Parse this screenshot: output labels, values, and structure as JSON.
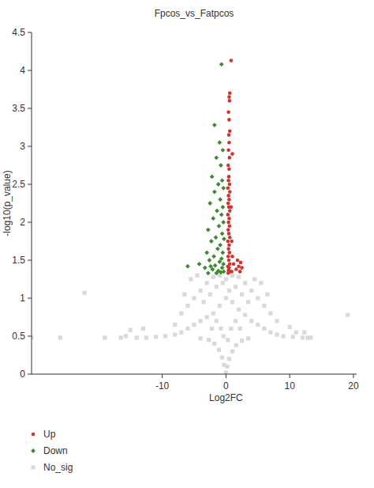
{
  "chart_data": {
    "type": "scatter",
    "title": "Fpcos_vs_Fatpcos",
    "x_label": "Log2FC",
    "y_label": "-log10(p_value)",
    "xlim": [
      -30.5,
      20.5
    ],
    "xticks": [
      -10,
      0,
      10,
      20
    ],
    "ylim": [
      0,
      4.5
    ],
    "yticks": [
      0,
      0.5,
      1,
      1.5,
      2,
      2.5,
      3,
      3.5,
      4,
      4.5
    ],
    "legend": "bottom-left",
    "series": [
      {
        "name": "Up",
        "color": "#d0342c",
        "marker": "circle",
        "x": [
          0.8,
          0.6,
          0.5,
          0.55,
          0.4,
          0.5,
          0.6,
          0.45,
          0.5,
          0.4,
          0.55,
          0.35,
          0.5,
          0.45,
          0.4,
          0.55,
          0.3,
          0.6,
          0.4,
          0.5,
          0.35,
          0.45,
          0.6,
          0.3,
          0.5,
          0.4,
          0.55,
          0.35,
          0.45,
          0.6,
          0.3,
          0.5,
          0.4,
          0.55,
          0.35,
          0.45,
          0.6,
          0.3,
          0.5,
          0.4,
          0.55,
          0.35,
          1.0,
          1.2,
          1.8,
          2.0,
          2.3,
          2.5,
          1.6,
          2.2,
          0.9,
          0.8,
          1.0,
          0.9
        ],
        "y": [
          4.13,
          3.7,
          3.65,
          3.6,
          3.45,
          3.35,
          3.2,
          3.15,
          3.05,
          2.95,
          2.85,
          2.75,
          2.7,
          2.6,
          2.55,
          2.5,
          2.45,
          2.4,
          2.35,
          2.3,
          2.25,
          2.2,
          2.15,
          2.1,
          2.05,
          2.0,
          1.95,
          1.9,
          1.85,
          1.8,
          1.75,
          1.7,
          1.65,
          1.6,
          1.55,
          1.5,
          1.45,
          1.42,
          1.4,
          1.37,
          1.35,
          1.33,
          1.55,
          1.45,
          1.5,
          1.42,
          1.47,
          1.4,
          1.38,
          1.35,
          1.75,
          2.2,
          2.9,
          1.35
        ]
      },
      {
        "name": "Down",
        "color": "#3d8b2f",
        "marker": "diamond",
        "x": [
          -0.7,
          -1.8,
          -1.0,
          -0.5,
          -1.5,
          -0.8,
          -2.2,
          -0.6,
          -1.2,
          -0.4,
          -1.8,
          -0.9,
          -2.5,
          -0.5,
          -1.4,
          -0.7,
          -2.0,
          -0.4,
          -1.1,
          -2.8,
          -0.6,
          -1.6,
          -0.3,
          -2.3,
          -0.9,
          -1.3,
          -3.0,
          -0.5,
          -1.9,
          -0.7,
          -2.6,
          -1.0,
          -0.4,
          -1.7,
          -3.3,
          -0.6,
          -2.1,
          -1.2,
          -0.8,
          -2.8,
          -4.2,
          -6.0,
          -1.5,
          -0.35,
          -2.4
        ],
        "y": [
          4.08,
          3.28,
          3.05,
          2.95,
          2.85,
          2.75,
          2.6,
          2.55,
          2.5,
          2.45,
          2.4,
          2.3,
          2.25,
          2.2,
          2.15,
          2.1,
          2.05,
          2.0,
          1.95,
          1.9,
          1.85,
          1.8,
          1.78,
          1.75,
          1.7,
          1.65,
          1.6,
          1.6,
          1.55,
          1.52,
          1.5,
          1.48,
          1.45,
          1.43,
          1.4,
          1.4,
          1.38,
          1.36,
          1.34,
          1.33,
          1.45,
          1.42,
          1.33,
          1.35,
          1.42
        ]
      },
      {
        "name": "No_sig",
        "color": "#d9d9d9",
        "marker": "square",
        "x": [
          0,
          0.2,
          -0.3,
          0.5,
          -0.6,
          1.0,
          -1.1,
          1.6,
          -1.8,
          2.5,
          -2.7,
          3.5,
          -4,
          -14,
          -12.5,
          -11,
          -9.5,
          -8,
          -7,
          -6,
          -5,
          -4,
          -3,
          -2,
          -1,
          0,
          1,
          2,
          3,
          4,
          5,
          6,
          7,
          8,
          9,
          10.5,
          12,
          12.8,
          -7,
          -6,
          -5,
          -4,
          -3,
          -2,
          -1,
          0,
          1,
          2,
          3,
          4,
          5,
          6,
          7,
          8,
          -8,
          -5.5,
          -4.5,
          -3.5,
          -2.5,
          -1.5,
          -0.5,
          0.5,
          1.5,
          2.5,
          3.5,
          4.5,
          5.5,
          6.5,
          -6.5,
          -0.8,
          0.8,
          -1.5,
          1.5,
          -2.2,
          2.2,
          0.3,
          -0.4,
          -30.5,
          -26,
          -22.2,
          -19,
          -16.5,
          -15.7,
          -15,
          13.3,
          12.3,
          19.1,
          -13,
          10,
          11
        ],
        "y": [
          0.02,
          0.1,
          0.12,
          0.2,
          0.22,
          0.3,
          0.32,
          0.38,
          0.4,
          0.44,
          0.45,
          0.47,
          0.47,
          0.48,
          0.48,
          0.49,
          0.5,
          0.52,
          0.55,
          0.6,
          0.65,
          0.7,
          0.75,
          0.8,
          0.9,
          1.0,
          0.95,
          0.85,
          0.78,
          0.7,
          0.65,
          0.6,
          0.55,
          0.52,
          0.5,
          0.49,
          0.48,
          0.48,
          0.8,
          0.9,
          1.0,
          1.1,
          1.2,
          1.28,
          1.3,
          1.25,
          1.3,
          1.28,
          1.2,
          1.1,
          1.0,
          0.9,
          0.8,
          0.7,
          0.65,
          1.25,
          1.3,
          0.95,
          1.05,
          1.15,
          1.2,
          1.1,
          1.15,
          1.05,
          0.95,
          1.25,
          1.2,
          1.05,
          1.05,
          0.6,
          0.6,
          0.7,
          0.7,
          0.6,
          0.6,
          0.45,
          0.5,
          0.48,
          0.48,
          1.07,
          0.48,
          0.48,
          0.5,
          0.58,
          0.48,
          0.55,
          0.78,
          0.6,
          0.62,
          0.55
        ]
      }
    ]
  }
}
